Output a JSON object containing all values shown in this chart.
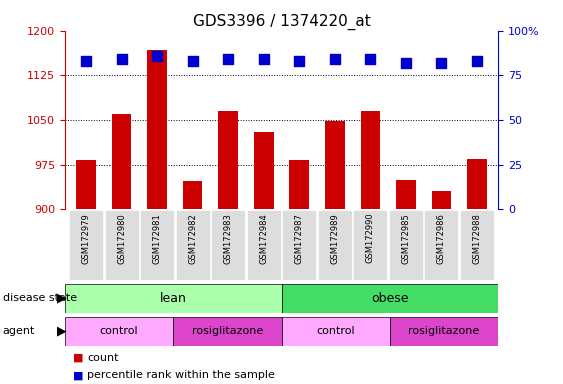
{
  "title": "GDS3396 / 1374220_at",
  "samples": [
    "GSM172979",
    "GSM172980",
    "GSM172981",
    "GSM172982",
    "GSM172983",
    "GSM172984",
    "GSM172987",
    "GSM172989",
    "GSM172990",
    "GSM172985",
    "GSM172986",
    "GSM172988"
  ],
  "count_values": [
    983,
    1060,
    1168,
    948,
    1065,
    1030,
    982,
    1048,
    1065,
    950,
    930,
    985
  ],
  "percentile_values": [
    83,
    84,
    86,
    83,
    84,
    84,
    83,
    84,
    84,
    82,
    82,
    83
  ],
  "ylim_left": [
    900,
    1200
  ],
  "ylim_right": [
    0,
    100
  ],
  "yticks_left": [
    900,
    975,
    1050,
    1125,
    1200
  ],
  "yticks_right": [
    0,
    25,
    50,
    75,
    100
  ],
  "bar_color": "#cc0000",
  "dot_color": "#0000cc",
  "grid_color": "#000000",
  "disease_colors": {
    "lean": "#aaffaa",
    "obese": "#44dd66"
  },
  "agent_colors": {
    "control": "#ffaaff",
    "rosiglitazone": "#dd44cc"
  },
  "agent_groups": [
    {
      "label": "control",
      "start": 0,
      "end": 3
    },
    {
      "label": "rosiglitazone",
      "start": 3,
      "end": 6
    },
    {
      "label": "control",
      "start": 6,
      "end": 9
    },
    {
      "label": "rosiglitazone",
      "start": 9,
      "end": 12
    }
  ],
  "tick_color_left": "#cc0000",
  "tick_color_right": "#0000cc",
  "bg_color": "#ffffff",
  "bar_width": 0.55,
  "dot_size": 55,
  "sample_bg": "#dddddd"
}
